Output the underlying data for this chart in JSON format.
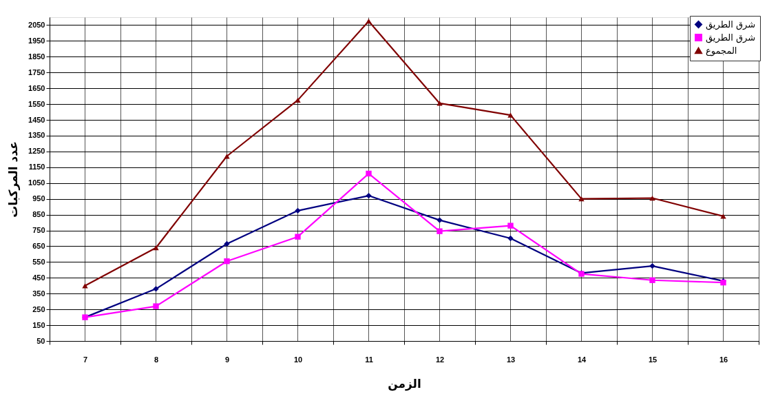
{
  "chart_data": {
    "type": "line",
    "xlabel": "الزمن",
    "ylabel": "عدد المركبات",
    "categories": [
      "7",
      "8",
      "9",
      "10",
      "11",
      "12",
      "13",
      "14",
      "15",
      "16"
    ],
    "series": [
      {
        "name": "شرق الطريق",
        "color": "#000080",
        "marker": "diamond",
        "values": [
          200,
          380,
          665,
          875,
          970,
          815,
          700,
          480,
          525,
          430
        ]
      },
      {
        "name": "شرق الطريق",
        "color": "#ff00ff",
        "marker": "square",
        "values": [
          200,
          270,
          555,
          710,
          1110,
          745,
          780,
          475,
          435,
          420
        ]
      },
      {
        "name": "المجموع",
        "color": "#800000",
        "marker": "triangle",
        "values": [
          400,
          640,
          1220,
          1575,
          2075,
          1555,
          1480,
          950,
          955,
          840
        ]
      }
    ],
    "ylim": [
      50,
      2100
    ],
    "yticks": [
      50,
      150,
      250,
      350,
      450,
      550,
      650,
      750,
      850,
      950,
      1050,
      1150,
      1250,
      1350,
      1450,
      1550,
      1650,
      1750,
      1850,
      1950,
      2050
    ],
    "grid": true,
    "legend": "top right",
    "line_style": "solid"
  }
}
